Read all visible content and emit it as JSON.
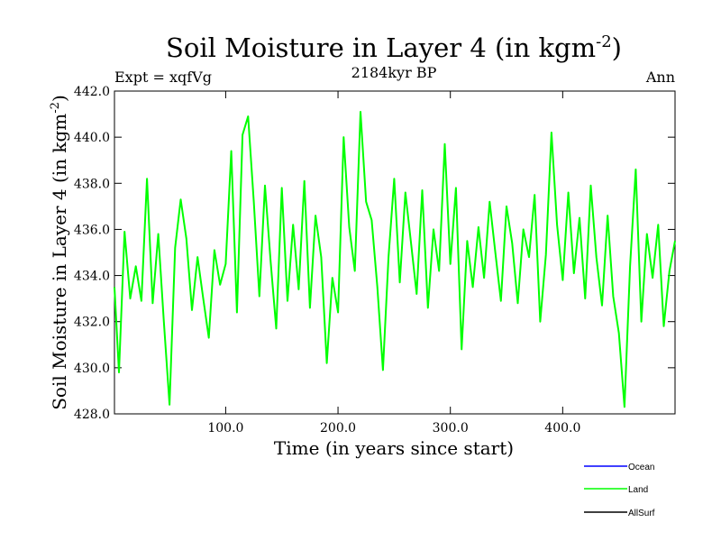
{
  "chart_data": {
    "type": "line",
    "title": "Soil Moisture in Layer 4 (in kgm",
    "title_sup": "-2",
    "title_suffix": ")",
    "subtitle_left": "Expt = xqfVg",
    "subtitle_center": "2184kyr BP",
    "subtitle_right": "Ann",
    "xlabel": "Time (in years since start)",
    "ylabel": "Soil Moisture in Layer 4 (in kgm",
    "ylabel_sup": "-2",
    "ylabel_suffix": ")",
    "xlim": [
      1,
      500
    ],
    "ylim": [
      428.0,
      442.0
    ],
    "xticks": [
      100,
      200,
      300,
      400
    ],
    "xtick_labels": [
      "100.0",
      "200.0",
      "300.0",
      "400.0"
    ],
    "yticks": [
      428,
      430,
      432,
      434,
      436,
      438,
      440,
      442
    ],
    "ytick_labels": [
      "428.0",
      "430.0",
      "432.0",
      "434.0",
      "436.0",
      "438.0",
      "440.0",
      "442.0"
    ],
    "legend": [
      {
        "name": "Ocean",
        "color": "#0000ff"
      },
      {
        "name": "Land",
        "color": "#00ff00"
      },
      {
        "name": "AllSurf",
        "color": "#000000"
      }
    ],
    "series": [
      {
        "name": "Land",
        "color": "#00ff00",
        "x": [
          1,
          5,
          10,
          15,
          20,
          25,
          30,
          35,
          40,
          45,
          50,
          55,
          60,
          65,
          70,
          75,
          80,
          85,
          90,
          95,
          100,
          105,
          110,
          115,
          120,
          125,
          130,
          135,
          140,
          145,
          150,
          155,
          160,
          165,
          170,
          175,
          180,
          185,
          190,
          195,
          200,
          205,
          210,
          215,
          220,
          225,
          230,
          235,
          240,
          245,
          250,
          255,
          260,
          265,
          270,
          275,
          280,
          285,
          290,
          295,
          300,
          305,
          310,
          315,
          320,
          325,
          330,
          335,
          340,
          345,
          350,
          355,
          360,
          365,
          370,
          375,
          380,
          385,
          390,
          395,
          400,
          405,
          410,
          415,
          420,
          425,
          430,
          435,
          440,
          445,
          450,
          455,
          460,
          465,
          470,
          475,
          480,
          485,
          490,
          495,
          500
        ],
        "values": [
          433.5,
          429.8,
          435.9,
          433.0,
          434.4,
          432.9,
          438.2,
          432.8,
          435.8,
          432.0,
          428.4,
          435.2,
          437.3,
          435.6,
          432.5,
          434.8,
          433.0,
          431.3,
          435.1,
          433.6,
          434.5,
          439.4,
          432.4,
          440.1,
          440.9,
          437.2,
          433.1,
          437.9,
          434.6,
          431.7,
          437.8,
          432.9,
          436.2,
          433.4,
          438.1,
          432.6,
          436.6,
          434.8,
          430.2,
          433.9,
          432.4,
          440.0,
          436.1,
          434.2,
          441.1,
          437.2,
          436.4,
          433.5,
          429.9,
          434.8,
          438.2,
          433.7,
          437.6,
          435.4,
          433.2,
          437.7,
          432.6,
          436.0,
          434.2,
          439.7,
          434.5,
          437.8,
          430.8,
          435.5,
          433.5,
          436.1,
          433.9,
          437.2,
          435.0,
          432.9,
          437.0,
          435.4,
          432.8,
          436.0,
          434.8,
          437.5,
          432.0,
          434.9,
          440.2,
          436.2,
          433.8,
          437.6,
          434.1,
          436.5,
          433.0,
          437.9,
          434.8,
          432.7,
          436.6,
          433.1,
          431.5,
          428.3,
          434.4,
          438.6,
          432.0,
          435.8,
          433.9,
          436.2,
          431.8,
          434.2,
          435.5
        ]
      },
      {
        "name": "Ocean",
        "color": "#0000ff",
        "x": [],
        "values": []
      },
      {
        "name": "AllSurf",
        "color": "#000000",
        "x": [],
        "values": []
      }
    ]
  }
}
